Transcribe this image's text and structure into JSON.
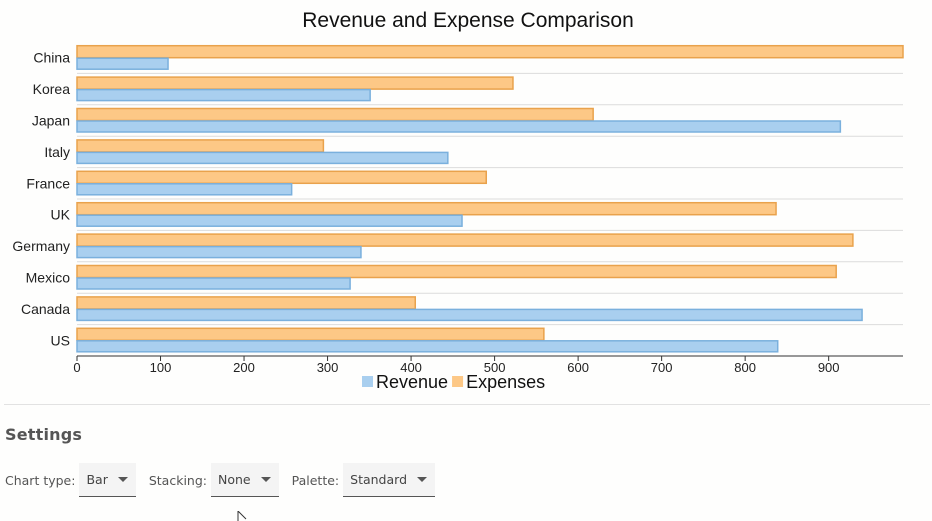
{
  "chart_data": {
    "type": "bar",
    "orientation": "horizontal",
    "title": "Revenue and Expense Comparison",
    "xlabel": "",
    "ylabel": "",
    "categories": [
      "US",
      "Canada",
      "Mexico",
      "Germany",
      "UK",
      "France",
      "Italy",
      "Japan",
      "Korea",
      "China"
    ],
    "series": [
      {
        "name": "Revenue",
        "color": "#a9cfef",
        "stroke": "#7ab0dd",
        "values": [
          839,
          940,
          327,
          340,
          461,
          257,
          444,
          914,
          351,
          109
        ]
      },
      {
        "name": "Expenses",
        "color": "#fdc886",
        "stroke": "#e9a24c",
        "values": [
          559,
          405,
          909,
          929,
          837,
          490,
          295,
          618,
          522,
          989
        ]
      }
    ],
    "xlim": [
      0,
      989
    ],
    "xticks": [
      0,
      100,
      200,
      300,
      400,
      500,
      600,
      700,
      800,
      900
    ],
    "grid": true,
    "legend": "bottom"
  },
  "settings": {
    "title": "Settings",
    "chart_type_label": "Chart type:",
    "chart_type_value": "Bar",
    "stacking_label": "Stacking:",
    "stacking_value": "None",
    "palette_label": "Palette:",
    "palette_value": "Standard"
  }
}
